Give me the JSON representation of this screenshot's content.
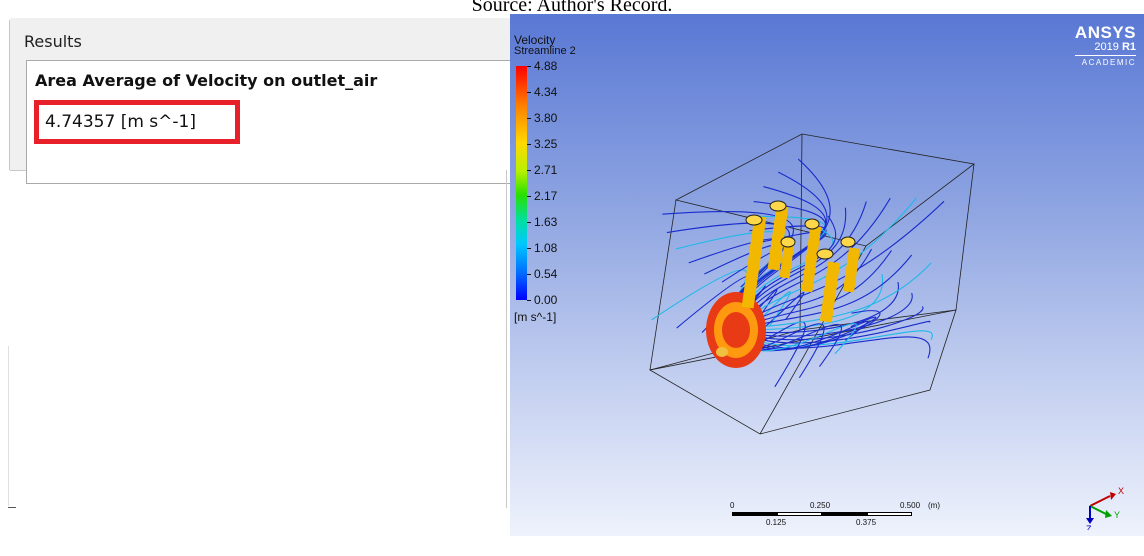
{
  "caption": "Source: Author's Record.",
  "results": {
    "header": "Results",
    "title": "Area Average of Velocity on outlet_air",
    "value": "4.74357 [m s^-1]"
  },
  "viewer": {
    "legend": {
      "title": "Velocity",
      "subtitle": "Streamline 2",
      "ticks": [
        "4.88",
        "4.34",
        "3.80",
        "3.25",
        "2.71",
        "2.17",
        "1.63",
        "1.08",
        "0.54",
        "0.00"
      ],
      "unit": "[m s^-1]"
    },
    "logo": {
      "name": "ANSYS",
      "release_year": "2019",
      "release_tag": "R1",
      "edition": "ACADEMIC"
    },
    "scale": {
      "top_labels": [
        "0",
        "0.250",
        "0.500"
      ],
      "unit": "(m)",
      "bottom_labels": [
        "0.125",
        "0.375"
      ]
    },
    "axes": {
      "x": "X",
      "y": "Y",
      "z": "Z"
    },
    "colors": {
      "max": "#ff0000",
      "mid": "#28e000",
      "min": "#0000ff",
      "streamline": "#1a2ccc",
      "highlight": "#e8202a"
    }
  }
}
